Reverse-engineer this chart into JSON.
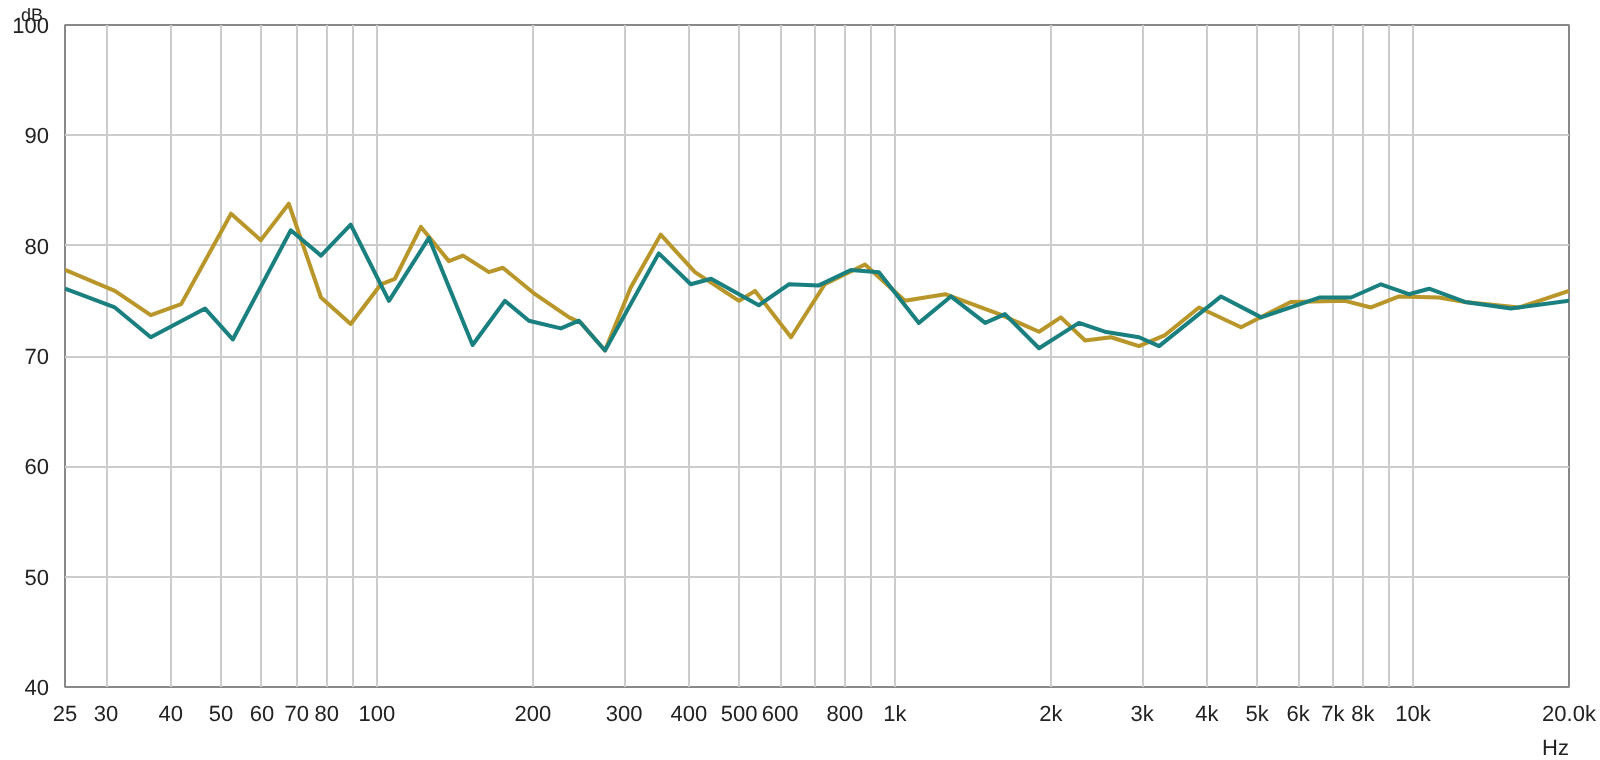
{
  "chart_data": {
    "type": "line",
    "xlabel": "Hz",
    "ylabel": "dB",
    "log": "x",
    "grid": true,
    "line_style": "solid",
    "xlim": [
      25,
      20000
    ],
    "ylim": [
      40,
      100
    ],
    "xticks": [
      25,
      30,
      40,
      50,
      60,
      70,
      80,
      {
        "value": 90,
        "label": null
      },
      100,
      200,
      300,
      400,
      500,
      600,
      {
        "value": 700,
        "label": null
      },
      800,
      {
        "value": 900,
        "label": null
      },
      {
        "value": 1000,
        "label": "1k"
      },
      {
        "value": 2000,
        "label": "2k"
      },
      {
        "value": 3000,
        "label": "3k"
      },
      {
        "value": 4000,
        "label": "4k"
      },
      {
        "value": 5000,
        "label": "5k"
      },
      {
        "value": 6000,
        "label": "6k"
      },
      {
        "value": 7000,
        "label": "7k"
      },
      {
        "value": 8000,
        "label": "8k"
      },
      {
        "value": 9000,
        "label": null
      },
      {
        "value": 10000,
        "label": "10k"
      },
      {
        "value": 20000,
        "label": "20.0k"
      }
    ],
    "yticks": [
      40,
      50,
      60,
      70,
      80,
      90,
      100
    ],
    "series": [
      {
        "color": "#b8962a",
        "x": [
          25,
          31.2,
          36.6,
          41.9,
          52.3,
          59.7,
          67.6,
          78,
          89,
          101.8,
          108.3,
          121.6,
          137.7,
          146.6,
          164.5,
          175,
          202,
          235,
          247.6,
          275.6,
          309,
          353,
          411,
          500,
          537,
          630,
          732,
          875,
          1045,
          1250,
          1589,
          1897,
          2090,
          2328,
          2612,
          2958,
          3322,
          3863,
          4656,
          5808,
          7391,
          8298,
          9397,
          11220,
          12590,
          16030,
          20000
        ],
        "values": [
          77.8,
          75.9,
          73.7,
          74.7,
          82.9,
          80.5,
          83.8,
          75.3,
          72.9,
          76.5,
          77,
          81.7,
          78.6,
          79.1,
          77.6,
          78,
          75.6,
          73.5,
          73,
          70.5,
          76.2,
          81,
          77.6,
          75,
          75.9,
          71.7,
          76.5,
          78.3,
          75,
          75.6,
          73.8,
          72.2,
          73.5,
          71.4,
          71.7,
          70.9,
          71.9,
          74.4,
          72.6,
          74.9,
          75,
          74.4,
          75.4,
          75.3,
          74.9,
          74.4,
          75.9
        ]
      },
      {
        "color": "#1a7f7f",
        "x": [
          25,
          31.2,
          36.6,
          46.6,
          52.7,
          68.2,
          78,
          89,
          105.5,
          126,
          153,
          176.6,
          196.5,
          226.5,
          245.5,
          275.6,
          350,
          403.6,
          441.6,
          546,
          624,
          713,
          822,
          931,
          1112,
          1282,
          1493,
          1630,
          1897,
          2265,
          2541,
          2958,
          3235,
          4260,
          5093,
          6590,
          7590,
          8670,
          9817,
          10740,
          12590,
          15450,
          20000
        ],
        "values": [
          76.1,
          74.4,
          71.7,
          74.3,
          71.5,
          81.4,
          79.1,
          81.9,
          75,
          80.7,
          71,
          75,
          73.2,
          72.5,
          73.2,
          70.5,
          79.3,
          76.5,
          77,
          74.6,
          76.5,
          76.4,
          77.8,
          77.6,
          73,
          75.4,
          73,
          73.8,
          70.7,
          73,
          72.2,
          71.7,
          70.9,
          75.4,
          73.5,
          75.3,
          75.3,
          76.5,
          75.6,
          76.1,
          74.9,
          74.3,
          75
        ]
      }
    ]
  }
}
